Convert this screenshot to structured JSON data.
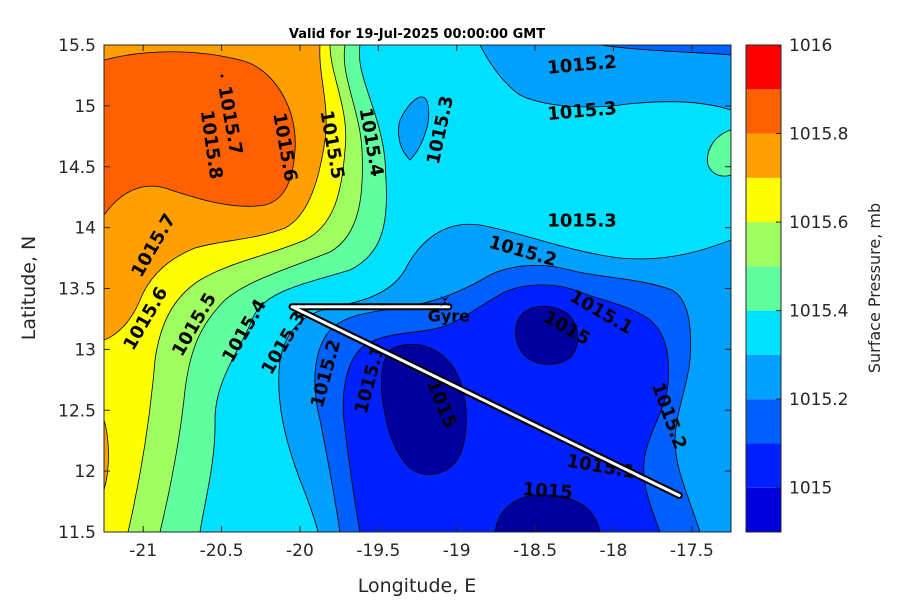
{
  "chart_data": {
    "type": "contour",
    "title": "Valid for 19-Jul-2025 00:00:00 GMT",
    "xlabel": "Longitude, E",
    "ylabel": "Latitude, N",
    "xlim": [
      -21.25,
      -17.25
    ],
    "ylim": [
      11.5,
      15.5
    ],
    "xticks": [
      -21,
      -20.5,
      -20,
      -19.5,
      -19,
      -18.5,
      -18,
      -17.5
    ],
    "xtick_labels": [
      "-21",
      "-20.5",
      "-20",
      "-19.5",
      "-19",
      "-18.5",
      "-18",
      "-17.5"
    ],
    "yticks": [
      11.5,
      12,
      12.5,
      13,
      13.5,
      14,
      14.5,
      15,
      15.5
    ],
    "ytick_labels": [
      "11.5",
      "12",
      "12.5",
      "13",
      "13.5",
      "14",
      "14.5",
      "15",
      "15.5"
    ],
    "colorbar": {
      "label": "Surface Pressure, mb",
      "range": [
        1014.9,
        1016.0
      ],
      "levels": [
        1014.9,
        1015.0,
        1015.1,
        1015.2,
        1015.3,
        1015.4,
        1015.5,
        1015.6,
        1015.7,
        1015.8,
        1015.9,
        1016.0
      ],
      "colors": [
        "#00009f",
        "#0000df",
        "#0020ff",
        "#0060ff",
        "#00a0ff",
        "#00e0ff",
        "#60ff9f",
        "#a0ff60",
        "#ffff00",
        "#ffa000",
        "#ff6000",
        "#ff0000",
        "#9f0000"
      ],
      "tick_values": [
        1015,
        1015.2,
        1015.4,
        1015.6,
        1015.8,
        1016
      ],
      "tick_labels": [
        "1015",
        "1015.2",
        "1015.4",
        "1015.6",
        "1015.8",
        "1016"
      ]
    },
    "contour_labels": [
      {
        "text": "1015.2",
        "lon": -18.2,
        "lat": 15.33,
        "angle": -5
      },
      {
        "text": "1015.3",
        "lon": -18.2,
        "lat": 14.95,
        "angle": -5
      },
      {
        "text": "1015.3",
        "lon": -18.2,
        "lat": 14.05,
        "angle": 0
      },
      {
        "text": "1015.2",
        "lon": -18.58,
        "lat": 13.8,
        "angle": 16
      },
      {
        "text": "1015.1",
        "lon": -18.08,
        "lat": 13.3,
        "angle": 30
      },
      {
        "text": "1015",
        "lon": -18.3,
        "lat": 13.17,
        "angle": 30
      },
      {
        "text": "1015.7",
        "lon": -20.45,
        "lat": 14.88,
        "angle": 80
      },
      {
        "text": "1015.8",
        "lon": -20.57,
        "lat": 14.68,
        "angle": 82
      },
      {
        "text": "1015.6",
        "lon": -20.1,
        "lat": 14.66,
        "angle": 80
      },
      {
        "text": "1015.5",
        "lon": -19.8,
        "lat": 14.68,
        "angle": 80
      },
      {
        "text": "1015.4",
        "lon": -19.55,
        "lat": 14.7,
        "angle": 80
      },
      {
        "text": "1015.3",
        "lon": -19.1,
        "lat": 14.8,
        "angle": -78
      },
      {
        "text": "1015.7",
        "lon": -20.93,
        "lat": 13.85,
        "angle": -60
      },
      {
        "text": "1015.6",
        "lon": -20.98,
        "lat": 13.25,
        "angle": -60
      },
      {
        "text": "1015.5",
        "lon": -20.67,
        "lat": 13.2,
        "angle": -60
      },
      {
        "text": "1015.4",
        "lon": -20.35,
        "lat": 13.15,
        "angle": -60
      },
      {
        "text": "1015.3",
        "lon": -20.1,
        "lat": 13.05,
        "angle": -60
      },
      {
        "text": "1015.2",
        "lon": -19.83,
        "lat": 12.8,
        "angle": -75
      },
      {
        "text": "1015.1",
        "lon": -19.55,
        "lat": 12.75,
        "angle": -75
      },
      {
        "text": "1015",
        "lon": -19.1,
        "lat": 12.55,
        "angle": 68
      },
      {
        "text": "1015.2",
        "lon": -17.65,
        "lat": 12.45,
        "angle": 70
      },
      {
        "text": "1015.1",
        "lon": -18.08,
        "lat": 12.03,
        "angle": 10
      },
      {
        "text": "1015",
        "lon": -18.42,
        "lat": 11.83,
        "angle": 4
      }
    ],
    "annotations": [
      {
        "text": "Gyre",
        "lon": -19.05,
        "lat": 13.28
      }
    ],
    "track": [
      {
        "lon": -20.05,
        "lat": 13.35
      },
      {
        "lon": -19.05,
        "lat": 13.35
      },
      {
        "lon": -20.05,
        "lat": 13.35
      },
      {
        "lon": -17.58,
        "lat": 11.8
      }
    ],
    "grid": false,
    "legend": "none"
  }
}
